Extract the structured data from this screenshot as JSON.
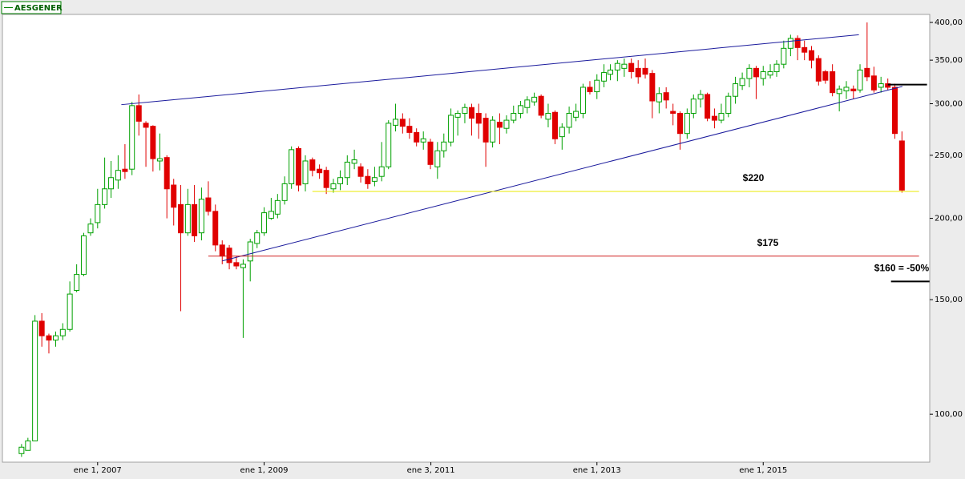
{
  "chart_data": {
    "type": "candlestick",
    "name": "AESGENER",
    "log_scale": true,
    "up_color": "#00a000",
    "down_color": "#e00000",
    "x": [
      "2006-02-01",
      "2006-03-01",
      "2006-04-01",
      "2006-05-01",
      "2006-06-01",
      "2006-07-01",
      "2006-08-01",
      "2006-09-01",
      "2006-10-01",
      "2006-11-01",
      "2006-12-01",
      "2007-01-01",
      "2007-02-01",
      "2007-03-01",
      "2007-04-01",
      "2007-05-01",
      "2007-06-01",
      "2007-07-01",
      "2007-08-01",
      "2007-09-01",
      "2007-10-01",
      "2007-11-01",
      "2007-12-01",
      "2008-01-01",
      "2008-02-01",
      "2008-03-01",
      "2008-04-01",
      "2008-05-01",
      "2008-06-01",
      "2008-07-01",
      "2008-08-01",
      "2008-09-01",
      "2008-10-01",
      "2008-11-01",
      "2008-12-01",
      "2009-01-01",
      "2009-02-01",
      "2009-03-01",
      "2009-04-01",
      "2009-05-01",
      "2009-06-01",
      "2009-07-01",
      "2009-08-01",
      "2009-09-01",
      "2009-10-01",
      "2009-11-01",
      "2009-12-01",
      "2010-01-01",
      "2010-02-01",
      "2010-03-01",
      "2010-04-01",
      "2010-05-01",
      "2010-06-01",
      "2010-07-01",
      "2010-08-01",
      "2010-09-01",
      "2010-10-01",
      "2010-11-01",
      "2010-12-01",
      "2011-01-01",
      "2011-02-01",
      "2011-03-01",
      "2011-04-01",
      "2011-05-01",
      "2011-06-01",
      "2011-07-01",
      "2011-08-01",
      "2011-09-01",
      "2011-10-01",
      "2011-11-01",
      "2011-12-01",
      "2012-01-01",
      "2012-02-01",
      "2012-03-01",
      "2012-04-01",
      "2012-05-01",
      "2012-06-01",
      "2012-07-01",
      "2012-08-01",
      "2012-09-01",
      "2012-10-01",
      "2012-11-01",
      "2012-12-01",
      "2013-01-01",
      "2013-02-01",
      "2013-03-01",
      "2013-04-01",
      "2013-05-01",
      "2013-06-01",
      "2013-07-01",
      "2013-08-01",
      "2013-09-01",
      "2013-10-01",
      "2013-11-01",
      "2013-12-01",
      "2014-01-01",
      "2014-02-01",
      "2014-03-01",
      "2014-04-01",
      "2014-05-01",
      "2014-06-01",
      "2014-07-01",
      "2014-08-01",
      "2014-09-01",
      "2014-10-01",
      "2014-11-01",
      "2014-12-01",
      "2015-01-01",
      "2015-02-01",
      "2015-03-01",
      "2015-04-01",
      "2015-05-01",
      "2015-06-01",
      "2015-07-01",
      "2015-08-01",
      "2015-09-01",
      "2015-10-01",
      "2015-11-01",
      "2015-12-01",
      "2016-01-01",
      "2016-02-01",
      "2016-03-01",
      "2016-04-01",
      "2016-05-01",
      "2016-06-01",
      "2016-07-01",
      "2016-08-01",
      "2016-09-01"
    ],
    "open": [
      87,
      88,
      91,
      139,
      132,
      130,
      132,
      135,
      155,
      164,
      190,
      197,
      210,
      222,
      229,
      238,
      238,
      298,
      280,
      277,
      245,
      248,
      225,
      210,
      190,
      210,
      190,
      215,
      205,
      182,
      180,
      171,
      168,
      172,
      183,
      190,
      200,
      203,
      213,
      226,
      256,
      226,
      246,
      238,
      237,
      222,
      226,
      231,
      243,
      240,
      232,
      228,
      232,
      240,
      278,
      284,
      277,
      271,
      262,
      262,
      240,
      254,
      262,
      286,
      290,
      296,
      290,
      285,
      262,
      281,
      275,
      283,
      290,
      296,
      302,
      308,
      284,
      291,
      267,
      276,
      286,
      290,
      318,
      313,
      325,
      333,
      338,
      340,
      346,
      340,
      340,
      334,
      302,
      312,
      292,
      290,
      270,
      290,
      305,
      310,
      287,
      283,
      290,
      308,
      320,
      328,
      340,
      328,
      332,
      336,
      345,
      365,
      378,
      366,
      362,
      352,
      336,
      336,
      311,
      314,
      316,
      315,
      340,
      331,
      318,
      322,
      318,
      263
    ],
    "high": [
      90,
      92,
      142,
      143,
      133,
      134,
      138,
      160,
      170,
      190,
      200,
      222,
      248,
      245,
      250,
      260,
      302,
      310,
      282,
      278,
      270,
      250,
      230,
      225,
      222,
      225,
      223,
      228,
      210,
      185,
      182,
      175,
      173,
      186,
      192,
      208,
      215,
      218,
      232,
      258,
      258,
      250,
      248,
      242,
      240,
      230,
      237,
      250,
      255,
      243,
      238,
      240,
      262,
      283,
      300,
      290,
      285,
      275,
      272,
      265,
      262,
      270,
      295,
      293,
      300,
      300,
      300,
      290,
      287,
      290,
      288,
      298,
      303,
      308,
      312,
      310,
      300,
      293,
      280,
      297,
      300,
      322,
      325,
      333,
      345,
      345,
      350,
      352,
      352,
      350,
      352,
      338,
      318,
      318,
      300,
      292,
      295,
      310,
      315,
      312,
      295,
      300,
      312,
      330,
      335,
      345,
      343,
      343,
      345,
      350,
      375,
      383,
      382,
      375,
      368,
      356,
      338,
      345,
      320,
      325,
      320,
      345,
      400,
      342,
      330,
      328,
      322,
      272
    ],
    "low": [
      86,
      88,
      91,
      127,
      124,
      127,
      130,
      134,
      154,
      163,
      188,
      193,
      207,
      215,
      222,
      230,
      233,
      268,
      240,
      236,
      237,
      200,
      195,
      144,
      188,
      184,
      185,
      202,
      178,
      170,
      167,
      167,
      131,
      160,
      180,
      188,
      199,
      200,
      210,
      222,
      220,
      220,
      232,
      230,
      218,
      219,
      221,
      225,
      238,
      227,
      222,
      224,
      228,
      238,
      272,
      270,
      265,
      258,
      255,
      238,
      230,
      248,
      258,
      268,
      280,
      268,
      265,
      240,
      257,
      260,
      270,
      280,
      285,
      290,
      298,
      285,
      276,
      260,
      255,
      270,
      282,
      285,
      310,
      305,
      318,
      326,
      325,
      330,
      328,
      322,
      328,
      285,
      290,
      295,
      278,
      255,
      265,
      285,
      296,
      282,
      275,
      280,
      286,
      300,
      315,
      318,
      305,
      320,
      328,
      330,
      340,
      355,
      350,
      350,
      340,
      320,
      322,
      308,
      292,
      305,
      305,
      312,
      325,
      312,
      312,
      315,
      265,
      219
    ],
    "close": [
      89,
      91,
      139,
      132,
      130,
      132,
      135,
      153,
      164,
      188,
      196,
      210,
      222,
      231,
      237,
      236,
      298,
      282,
      276,
      247,
      247,
      222,
      208,
      190,
      210,
      188,
      214,
      205,
      182,
      175,
      171,
      169,
      170,
      184,
      190,
      204,
      205,
      213,
      226,
      255,
      225,
      245,
      237,
      235,
      223,
      226,
      231,
      244,
      246,
      232,
      226,
      231,
      240,
      280,
      284,
      277,
      271,
      262,
      265,
      242,
      254,
      262,
      288,
      290,
      296,
      285,
      280,
      262,
      283,
      276,
      283,
      290,
      298,
      304,
      307,
      288,
      290,
      265,
      276,
      290,
      292,
      318,
      313,
      326,
      335,
      338,
      346,
      345,
      336,
      330,
      333,
      303,
      311,
      304,
      290,
      270,
      290,
      305,
      310,
      285,
      283,
      290,
      308,
      322,
      328,
      340,
      330,
      336,
      336,
      345,
      365,
      378,
      366,
      360,
      350,
      325,
      326,
      312,
      316,
      318,
      314,
      338,
      330,
      315,
      322,
      318,
      270,
      221
    ],
    "xlim": [
      "2005-11-09",
      "2017-01-01"
    ],
    "xticks": [
      {
        "value": "2007-01-01",
        "label": "ene 1, 2007"
      },
      {
        "value": "2009-01-01",
        "label": "ene 1, 2009"
      },
      {
        "value": "2011-01-03",
        "label": "ene 3, 2011"
      },
      {
        "value": "2013-01-01",
        "label": "ene 1, 2013"
      },
      {
        "value": "2015-01-01",
        "label": "ene 1, 2015"
      }
    ],
    "ylim": [
      84.4,
      411.5
    ],
    "yticks": [
      {
        "value": 100,
        "label": "100,00"
      },
      {
        "value": 150,
        "label": "150,00"
      },
      {
        "value": 200,
        "label": "200,00"
      },
      {
        "value": 250,
        "label": "250,00"
      },
      {
        "value": 300,
        "label": "300,00"
      },
      {
        "value": 350,
        "label": "350,00"
      },
      {
        "value": 400,
        "label": "400,00"
      }
    ],
    "annotations": [
      {
        "color": "#1a1a9c",
        "points": [
          [
            "2007-04-15",
            299
          ],
          [
            "2016-02-25",
            383
          ]
        ]
      },
      {
        "color": "#1a1a9c",
        "points": [
          [
            "2008-07-01",
            172
          ],
          [
            "2016-09-03",
            319
          ]
        ]
      },
      {
        "color": "#e8e800",
        "value": 220,
        "label": "$220",
        "from": "2009-08-01",
        "to": "2016-11-15"
      },
      {
        "color": "#d02020",
        "value": 175,
        "label": "$175",
        "from": "2008-05-01",
        "to": "2016-11-15"
      },
      {
        "color": "#000000",
        "value": 321,
        "from": "2016-07-01",
        "to": "2016-12-20"
      },
      {
        "color": "#000000",
        "value": 160,
        "label": "$160 = -50%",
        "from": "2016-07-15",
        "to": "2016-12-31"
      }
    ]
  }
}
